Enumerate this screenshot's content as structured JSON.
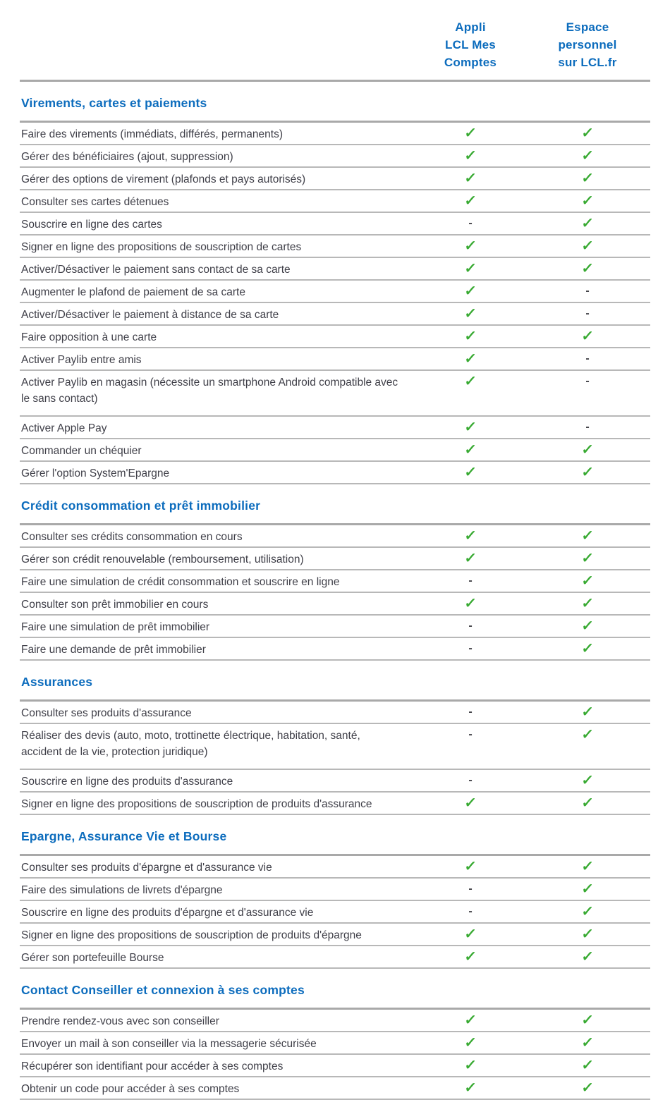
{
  "colors": {
    "blue": "#0c6cbd",
    "green": "#38aa32",
    "text": "#3f3f48",
    "rule": "#a9a9a9",
    "line": "#b8b8b8"
  },
  "symbols": {
    "check": "✓",
    "dash": "-"
  },
  "header": {
    "columns": [
      {
        "label": "Appli\nLCL Mes\nComptes"
      },
      {
        "label": "Espace\npersonnel\nsur LCL.fr"
      }
    ]
  },
  "sections": [
    {
      "title": "Virements, cartes et paiements",
      "rows": [
        {
          "label": "Faire des virements (immédiats, différés, permanents)",
          "app": "check",
          "web": "check"
        },
        {
          "label": "Gérer des bénéficiaires (ajout, suppression)",
          "app": "check",
          "web": "check"
        },
        {
          "label": "Gérer des options de virement (plafonds et pays autorisés)",
          "app": "check",
          "web": "check"
        },
        {
          "label": "Consulter ses cartes détenues",
          "app": "check",
          "web": "check"
        },
        {
          "label": "Souscrire en ligne des cartes",
          "app": "dash",
          "web": "check"
        },
        {
          "label": "Signer en ligne des propositions de souscription de cartes",
          "app": "check",
          "web": "check"
        },
        {
          "label": "Activer/Désactiver le paiement sans contact de sa carte",
          "app": "check",
          "web": "check"
        },
        {
          "label": "Augmenter le plafond de paiement de sa carte",
          "app": "check",
          "web": "dash"
        },
        {
          "label": "Activer/Désactiver le paiement à distance de sa carte",
          "app": "check",
          "web": "dash"
        },
        {
          "label": "Faire opposition à une carte",
          "app": "check",
          "web": "check"
        },
        {
          "label": "Activer Paylib entre amis",
          "app": "check",
          "web": "dash"
        },
        {
          "label": "Activer Paylib en magasin (nécessite un smartphone Android compatible avec le sans contact)",
          "app": "check",
          "web": "dash"
        },
        {
          "label": "Activer Apple Pay",
          "app": "check",
          "web": "dash"
        },
        {
          "label": "Commander un chéquier",
          "app": "check",
          "web": "check"
        },
        {
          "label": "Gérer l'option System'Epargne",
          "app": "check",
          "web": "check"
        }
      ]
    },
    {
      "title": "Crédit consommation et prêt immobilier",
      "rows": [
        {
          "label": "Consulter ses crédits consommation en cours",
          "app": "check",
          "web": "check"
        },
        {
          "label": "Gérer son crédit renouvelable (remboursement, utilisation)",
          "app": "check",
          "web": "check"
        },
        {
          "label": "Faire une simulation de crédit consommation et souscrire en ligne",
          "app": "dash",
          "web": "check"
        },
        {
          "label": "Consulter son prêt immobilier en cours",
          "app": "check",
          "web": "check"
        },
        {
          "label": "Faire une simulation de prêt immobilier",
          "app": "dash",
          "web": "check"
        },
        {
          "label": "Faire une demande de prêt immobilier",
          "app": "dash",
          "web": "check"
        }
      ]
    },
    {
      "title": "Assurances",
      "rows": [
        {
          "label": "Consulter ses produits d'assurance",
          "app": "dash",
          "web": "check"
        },
        {
          "label": "Réaliser des devis (auto, moto, trottinette électrique, habitation, santé, accident de la vie, protection juridique)",
          "app": "dash",
          "web": "check"
        },
        {
          "label": "Souscrire en ligne des produits d'assurance",
          "app": "dash",
          "web": "check"
        },
        {
          "label": "Signer en ligne des propositions de souscription de produits d'assurance",
          "app": "check",
          "web": "check"
        }
      ]
    },
    {
      "title": "Epargne, Assurance Vie et Bourse",
      "rows": [
        {
          "label": "Consulter ses produits d'épargne et d'assurance vie",
          "app": "check",
          "web": "check"
        },
        {
          "label": "Faire des simulations de livrets d'épargne",
          "app": "dash",
          "web": "check"
        },
        {
          "label": "Souscrire en ligne des produits d'épargne et d'assurance vie",
          "app": "dash",
          "web": "check"
        },
        {
          "label": "Signer en ligne des propositions de souscription de produits d'épargne",
          "app": "check",
          "web": "check"
        },
        {
          "label": "Gérer son portefeuille Bourse",
          "app": "check",
          "web": "check"
        }
      ]
    },
    {
      "title": "Contact Conseiller et connexion à ses comptes",
      "rows": [
        {
          "label": "Prendre rendez-vous avec son conseiller",
          "app": "check",
          "web": "check"
        },
        {
          "label": "Envoyer un mail à son conseiller via la messagerie sécurisée",
          "app": "check",
          "web": "check"
        },
        {
          "label": "Récupérer son identifiant pour accéder à ses comptes",
          "app": "check",
          "web": "check"
        },
        {
          "label": "Obtenir un code pour accéder à ses comptes",
          "app": "check",
          "web": "check"
        }
      ]
    }
  ]
}
